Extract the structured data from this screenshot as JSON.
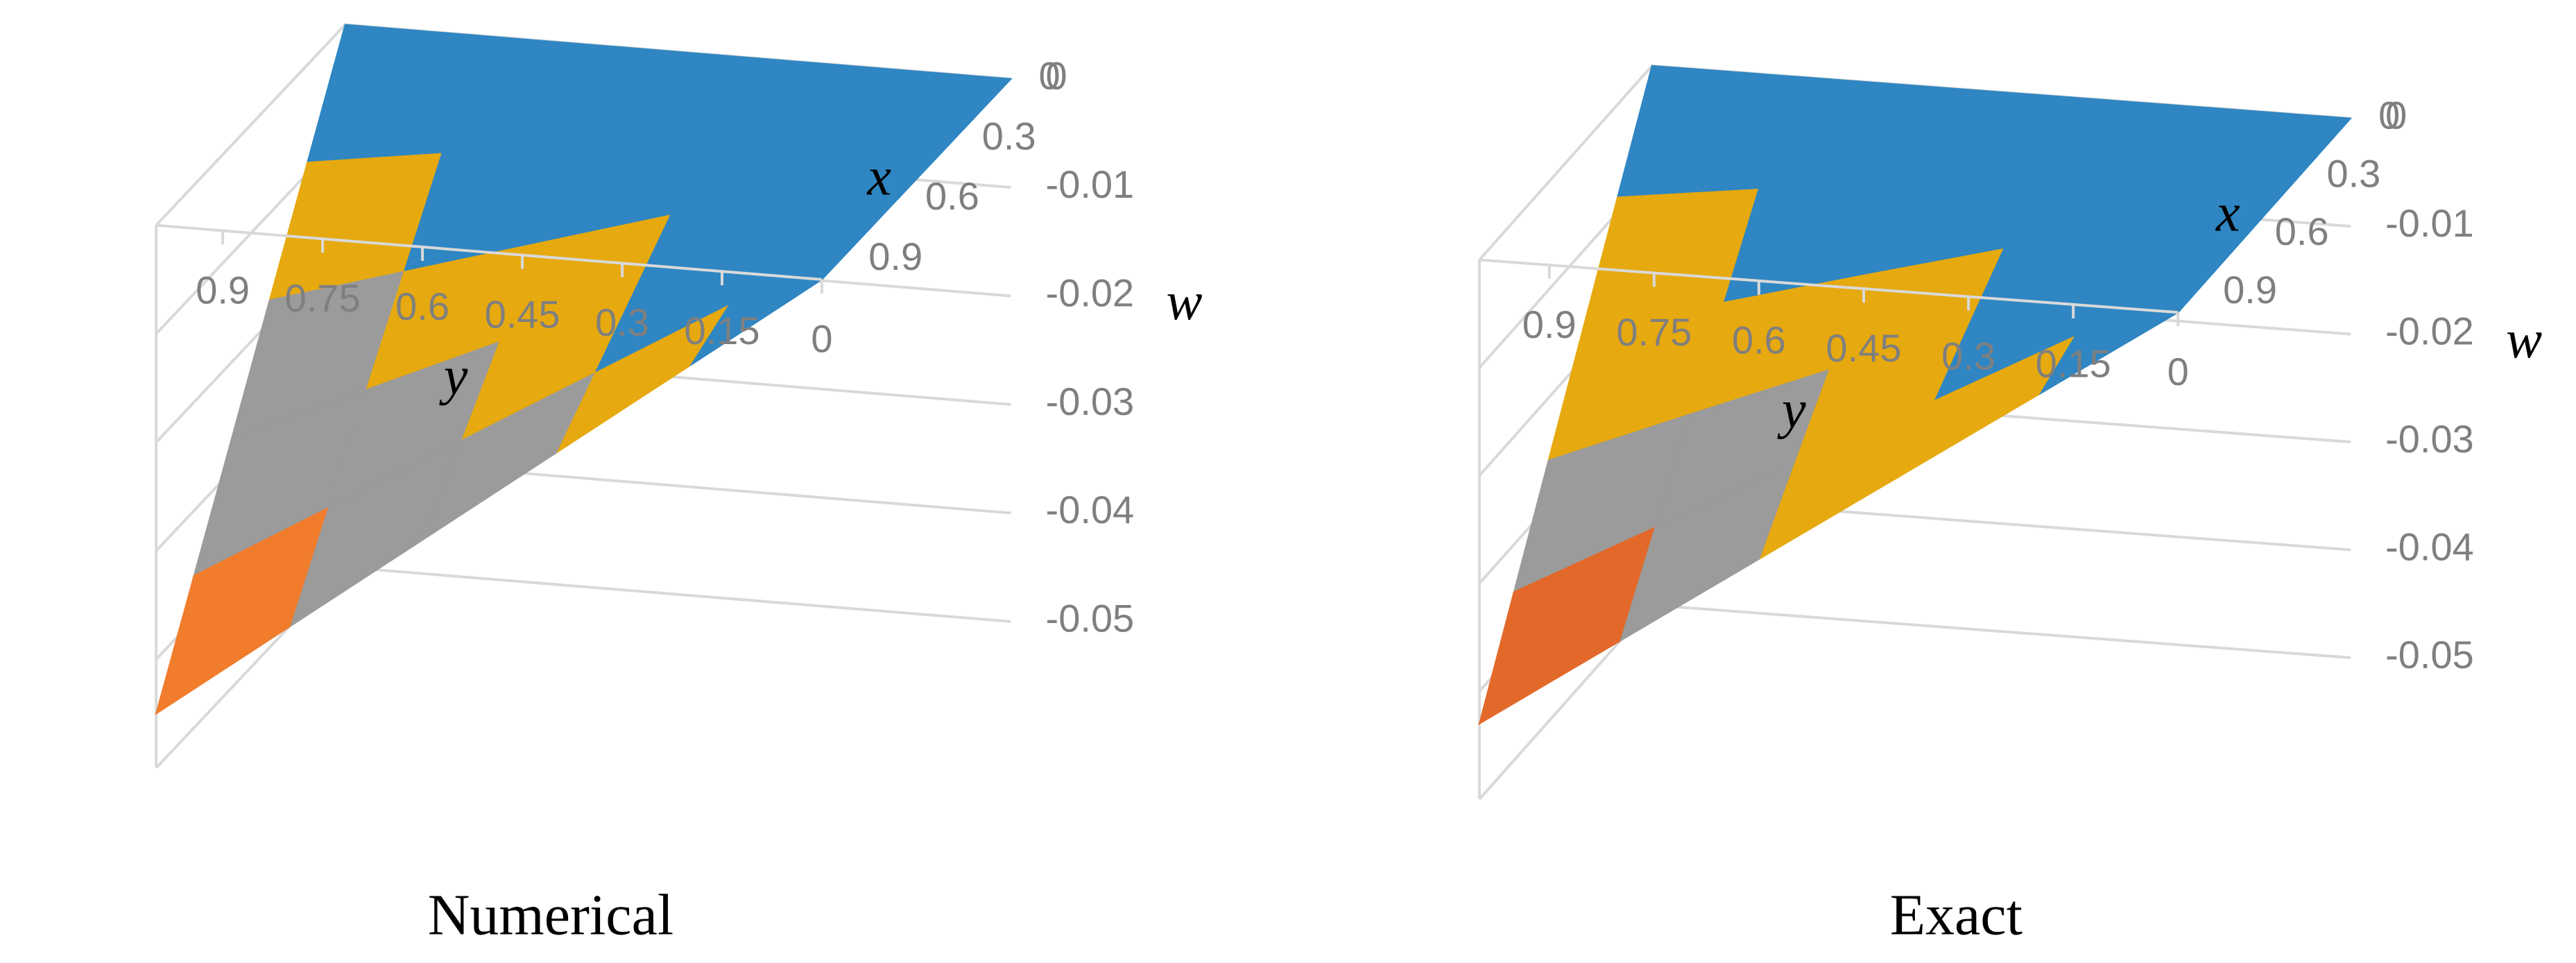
{
  "chart_data": [
    {
      "type": "surface",
      "title": "Numerical",
      "x_label": "x",
      "y_label": "y",
      "z_label": "w",
      "x": [
        0,
        0.2,
        0.4,
        0.6,
        0.8,
        1.0
      ],
      "y": [
        0,
        0.2,
        0.4,
        0.6,
        0.8,
        1.0
      ],
      "z": [
        [
          0,
          0,
          0,
          0,
          0,
          0
        ],
        [
          0,
          -0.0018,
          -0.0036,
          -0.0054,
          -0.0072,
          -0.009
        ],
        [
          0,
          -0.0036,
          -0.0072,
          -0.0108,
          -0.0144,
          -0.018
        ],
        [
          0,
          -0.0054,
          -0.0108,
          -0.0162,
          -0.0216,
          -0.027
        ],
        [
          0,
          -0.0072,
          -0.0144,
          -0.0216,
          -0.0288,
          -0.036
        ],
        [
          0,
          -0.009,
          -0.018,
          -0.027,
          -0.036,
          -0.045
        ]
      ],
      "xlim": [
        0,
        1
      ],
      "ylim": [
        0,
        1
      ],
      "zlim": [
        -0.05,
        0
      ],
      "xticks": [
        0,
        0.3,
        0.6,
        0.9
      ],
      "yticks": [
        0.9,
        0.75,
        0.6,
        0.45,
        0.3,
        0.15,
        0
      ],
      "zticks": [
        0,
        -0.01,
        -0.02,
        -0.03,
        -0.04,
        -0.05
      ],
      "colors": [
        "#2f86c2",
        "#e6a90f",
        "#9b9b9b",
        "#f07c2c",
        "#1f6bbd"
      ]
    },
    {
      "type": "surface",
      "title": "Exact",
      "x_label": "x",
      "y_label": "y",
      "z_label": "w",
      "x": [
        0,
        0.2,
        0.4,
        0.6,
        0.8,
        1.0
      ],
      "y": [
        0,
        0.2,
        0.4,
        0.6,
        0.8,
        1.0
      ],
      "z": [
        [
          0,
          0,
          0,
          0,
          0,
          0
        ],
        [
          0,
          -0.0017,
          -0.0034,
          -0.0052,
          -0.0069,
          -0.0086
        ],
        [
          0,
          -0.0034,
          -0.0069,
          -0.0103,
          -0.0138,
          -0.0172
        ],
        [
          0,
          -0.0052,
          -0.0103,
          -0.0155,
          -0.0206,
          -0.0258
        ],
        [
          0,
          -0.0069,
          -0.0138,
          -0.0206,
          -0.0275,
          -0.0344
        ],
        [
          0,
          -0.0086,
          -0.0172,
          -0.0258,
          -0.0344,
          -0.043
        ]
      ],
      "xlim": [
        0,
        1
      ],
      "ylim": [
        0,
        1
      ],
      "zlim": [
        -0.05,
        0
      ],
      "xticks": [
        0,
        0.3,
        0.6,
        0.9
      ],
      "yticks": [
        0.9,
        0.75,
        0.6,
        0.45,
        0.3,
        0.15,
        0
      ],
      "zticks": [
        0,
        -0.01,
        -0.02,
        -0.03,
        -0.04,
        -0.05
      ],
      "colors": [
        "#2f86c2",
        "#e6a90f",
        "#9b9b9b",
        "#e2692a",
        "#1a5fa8"
      ]
    }
  ]
}
